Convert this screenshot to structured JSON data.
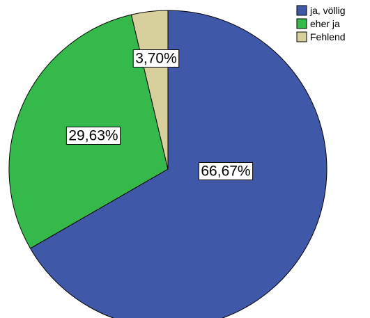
{
  "chart_data": {
    "type": "pie",
    "title": "",
    "slices": [
      {
        "label": "ja, völlig",
        "value": 66.67,
        "display": "66,67%",
        "color": "#3f58a8"
      },
      {
        "label": "eher ja",
        "value": 29.63,
        "display": "29,63%",
        "color": "#35b94a"
      },
      {
        "label": "Fehlend",
        "value": 3.7,
        "display": "3,70%",
        "color": "#d7cf9c"
      }
    ],
    "start_angle_deg": 0,
    "direction": "clockwise",
    "legend_position": "top-right"
  }
}
